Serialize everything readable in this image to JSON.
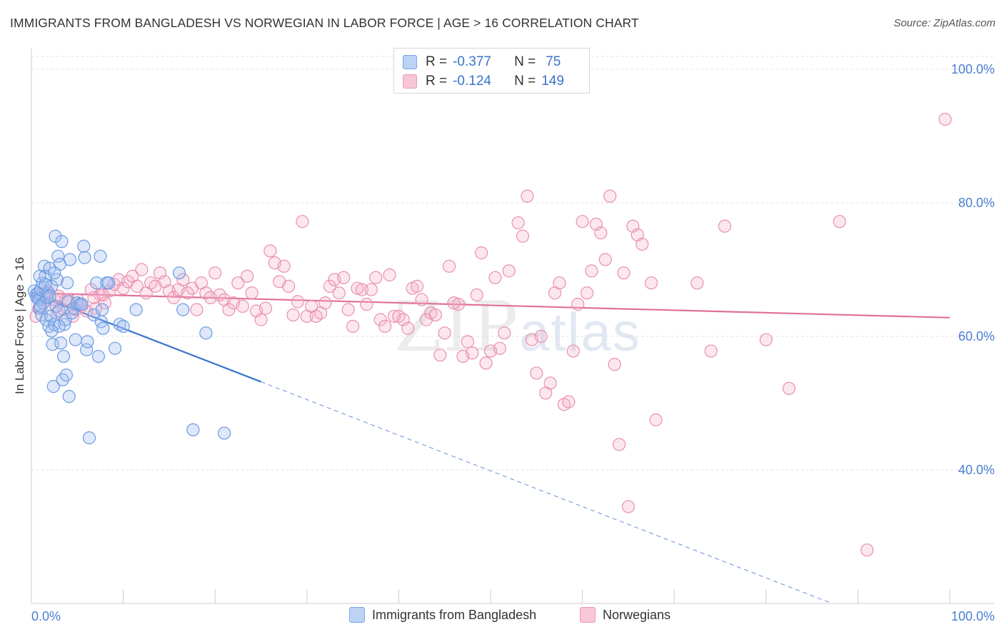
{
  "title": "IMMIGRANTS FROM BANGLADESH VS NORWEGIAN IN LABOR FORCE | AGE > 16 CORRELATION CHART",
  "source": "Source: ZipAtlas.com",
  "watermark": {
    "zip": "ZIP",
    "atlas": "atlas"
  },
  "legend": {
    "r_label": "R =",
    "n_label": "N =",
    "rows": [
      {
        "r": "-0.377",
        "n": "75"
      },
      {
        "r": "-0.124",
        "n": "149"
      }
    ]
  },
  "bottom_legend": [
    {
      "label": "Immigrants from Bangladesh"
    },
    {
      "label": "Norwegians"
    }
  ],
  "colors": {
    "blue": "#3a73cc",
    "pink": "#e0709a"
  },
  "chart_data": {
    "type": "scatter",
    "title": "IMMIGRANTS FROM BANGLADESH VS NORWEGIAN IN LABOR FORCE | AGE > 16 CORRELATION CHART",
    "xlabel": "",
    "ylabel": "In Labor Force | Age > 16",
    "xlim": [
      0,
      100
    ],
    "ylim": [
      20,
      100
    ],
    "x_tick_labels": [
      "0.0%",
      "100.0%"
    ],
    "y_ticks": [
      40,
      60,
      80,
      100
    ],
    "y_tick_labels": [
      "40.0%",
      "60.0%",
      "80.0%",
      "100.0%"
    ],
    "grid": true,
    "legend_position": "top-center",
    "series": [
      {
        "name": "Immigrants from Bangladesh",
        "color": "#6b9be0",
        "trend": {
          "x": [
            0,
            25
          ],
          "y": [
            66.5,
            53.2
          ],
          "dashed_to": [
            100,
            20
          ]
        },
        "points": [
          [
            0.3,
            66.8
          ],
          [
            0.5,
            66.2
          ],
          [
            0.6,
            65.8
          ],
          [
            0.7,
            66.5
          ],
          [
            0.8,
            65.5
          ],
          [
            0.9,
            64.2
          ],
          [
            1.0,
            67.0
          ],
          [
            1.1,
            63.2
          ],
          [
            1.2,
            68.0
          ],
          [
            1.3,
            65.0
          ],
          [
            1.4,
            70.5
          ],
          [
            1.5,
            69.0
          ],
          [
            1.6,
            62.5
          ],
          [
            1.7,
            65.8
          ],
          [
            1.8,
            66.5
          ],
          [
            1.9,
            61.5
          ],
          [
            2.0,
            70.2
          ],
          [
            2.1,
            63.0
          ],
          [
            2.2,
            67.5
          ],
          [
            2.3,
            58.8
          ],
          [
            2.4,
            52.5
          ],
          [
            2.5,
            61.8
          ],
          [
            2.6,
            75.0
          ],
          [
            2.7,
            64.5
          ],
          [
            2.8,
            68.5
          ],
          [
            2.9,
            72.0
          ],
          [
            3.0,
            63.8
          ],
          [
            3.1,
            70.8
          ],
          [
            3.2,
            59.0
          ],
          [
            3.3,
            74.2
          ],
          [
            3.4,
            53.5
          ],
          [
            3.5,
            57.0
          ],
          [
            3.6,
            61.8
          ],
          [
            3.7,
            62.5
          ],
          [
            3.8,
            54.2
          ],
          [
            3.9,
            68.0
          ],
          [
            4.0,
            65.2
          ],
          [
            4.1,
            51.0
          ],
          [
            4.2,
            71.5
          ],
          [
            4.4,
            63.5
          ],
          [
            4.6,
            64.2
          ],
          [
            4.8,
            59.5
          ],
          [
            5.0,
            65.0
          ],
          [
            5.3,
            64.8
          ],
          [
            5.5,
            64.8
          ],
          [
            5.7,
            73.5
          ],
          [
            5.8,
            71.8
          ],
          [
            6.0,
            58.0
          ],
          [
            6.1,
            59.2
          ],
          [
            6.3,
            44.8
          ],
          [
            6.8,
            63.2
          ],
          [
            7.1,
            68.0
          ],
          [
            7.3,
            57.0
          ],
          [
            7.5,
            72.0
          ],
          [
            7.6,
            62.2
          ],
          [
            7.7,
            64.0
          ],
          [
            7.8,
            61.2
          ],
          [
            8.2,
            68.0
          ],
          [
            8.4,
            68.0
          ],
          [
            9.1,
            58.2
          ],
          [
            9.6,
            61.8
          ],
          [
            10.0,
            61.5
          ],
          [
            11.4,
            64.0
          ],
          [
            16.1,
            69.5
          ],
          [
            16.5,
            64.0
          ],
          [
            19.0,
            60.5
          ],
          [
            17.6,
            46.0
          ],
          [
            21.0,
            45.5
          ],
          [
            1.0,
            64.5
          ],
          [
            2.0,
            66.0
          ],
          [
            3.0,
            61.5
          ],
          [
            2.5,
            69.5
          ],
          [
            1.5,
            67.8
          ],
          [
            0.9,
            69.0
          ],
          [
            2.2,
            60.8
          ]
        ]
      },
      {
        "name": "Norwegians",
        "color": "#e890b0",
        "trend": {
          "x": [
            0,
            100
          ],
          "y": [
            66.5,
            62.8
          ]
        },
        "points": [
          [
            0.5,
            63.0
          ],
          [
            1.0,
            65.5
          ],
          [
            1.5,
            66.5
          ],
          [
            2.0,
            64.8
          ],
          [
            2.5,
            65.5
          ],
          [
            3.0,
            66.0
          ],
          [
            3.5,
            64.0
          ],
          [
            4.0,
            65.5
          ],
          [
            4.5,
            63.0
          ],
          [
            5.0,
            65.5
          ],
          [
            5.5,
            64.5
          ],
          [
            6.0,
            63.8
          ],
          [
            6.5,
            67.0
          ],
          [
            7.0,
            64.2
          ],
          [
            7.5,
            66.2
          ],
          [
            8.0,
            65.0
          ],
          [
            8.5,
            66.8
          ],
          [
            9.0,
            67.8
          ],
          [
            9.5,
            68.5
          ],
          [
            10.0,
            67.2
          ],
          [
            10.5,
            68.2
          ],
          [
            11.0,
            69.0
          ],
          [
            11.5,
            67.5
          ],
          [
            12.0,
            70.0
          ],
          [
            12.5,
            66.5
          ],
          [
            13.0,
            68.0
          ],
          [
            13.5,
            67.5
          ],
          [
            14.0,
            69.5
          ],
          [
            14.5,
            68.2
          ],
          [
            15.0,
            66.8
          ],
          [
            15.5,
            65.8
          ],
          [
            16.0,
            67.0
          ],
          [
            16.5,
            68.5
          ],
          [
            17.0,
            66.5
          ],
          [
            17.5,
            67.2
          ],
          [
            18.0,
            64.0
          ],
          [
            18.5,
            68.0
          ],
          [
            19.0,
            66.5
          ],
          [
            19.5,
            65.8
          ],
          [
            20.0,
            69.5
          ],
          [
            20.5,
            66.2
          ],
          [
            21.0,
            65.5
          ],
          [
            21.5,
            64.0
          ],
          [
            22.0,
            65.0
          ],
          [
            22.5,
            68.0
          ],
          [
            23.0,
            64.5
          ],
          [
            23.5,
            69.0
          ],
          [
            24.0,
            66.5
          ],
          [
            24.5,
            63.8
          ],
          [
            25.0,
            62.5
          ],
          [
            25.5,
            64.2
          ],
          [
            26.0,
            72.8
          ],
          [
            26.5,
            71.0
          ],
          [
            27.0,
            68.2
          ],
          [
            27.5,
            70.5
          ],
          [
            28.0,
            67.5
          ],
          [
            28.5,
            63.2
          ],
          [
            29.0,
            65.2
          ],
          [
            29.5,
            77.2
          ],
          [
            30.0,
            63.0
          ],
          [
            30.5,
            64.5
          ],
          [
            31.0,
            63.0
          ],
          [
            31.5,
            63.5
          ],
          [
            32.0,
            65.0
          ],
          [
            32.5,
            67.5
          ],
          [
            33.0,
            68.5
          ],
          [
            33.5,
            66.5
          ],
          [
            34.0,
            68.8
          ],
          [
            34.5,
            64.0
          ],
          [
            35.0,
            61.5
          ],
          [
            35.5,
            67.2
          ],
          [
            36.0,
            67.0
          ],
          [
            36.5,
            64.8
          ],
          [
            37.0,
            67.0
          ],
          [
            37.5,
            68.8
          ],
          [
            38.0,
            62.5
          ],
          [
            38.5,
            61.5
          ],
          [
            39.0,
            69.2
          ],
          [
            39.5,
            63.0
          ],
          [
            40.0,
            63.0
          ],
          [
            40.5,
            62.5
          ],
          [
            41.0,
            61.2
          ],
          [
            41.5,
            67.2
          ],
          [
            42.0,
            67.5
          ],
          [
            42.5,
            65.5
          ],
          [
            43.0,
            62.5
          ],
          [
            43.5,
            63.5
          ],
          [
            44.0,
            63.2
          ],
          [
            44.5,
            57.2
          ],
          [
            45.0,
            60.5
          ],
          [
            45.5,
            70.5
          ],
          [
            46.0,
            65.0
          ],
          [
            46.5,
            64.8
          ],
          [
            47.0,
            57.0
          ],
          [
            47.5,
            59.2
          ],
          [
            48.0,
            57.5
          ],
          [
            48.5,
            66.2
          ],
          [
            49.0,
            72.5
          ],
          [
            49.5,
            56.0
          ],
          [
            50.0,
            57.8
          ],
          [
            50.5,
            68.8
          ],
          [
            51.0,
            58.2
          ],
          [
            51.5,
            60.5
          ],
          [
            52.0,
            69.8
          ],
          [
            53.0,
            77.0
          ],
          [
            53.5,
            75.0
          ],
          [
            54.0,
            81.0
          ],
          [
            54.5,
            59.5
          ],
          [
            55.0,
            54.5
          ],
          [
            55.5,
            60.0
          ],
          [
            56.0,
            51.5
          ],
          [
            56.5,
            53.0
          ],
          [
            57.0,
            66.5
          ],
          [
            57.5,
            68.0
          ],
          [
            58.0,
            49.8
          ],
          [
            58.5,
            50.2
          ],
          [
            59.0,
            57.8
          ],
          [
            59.5,
            64.8
          ],
          [
            60.0,
            77.2
          ],
          [
            60.5,
            66.5
          ],
          [
            61.0,
            69.8
          ],
          [
            61.5,
            76.8
          ],
          [
            62.0,
            75.5
          ],
          [
            62.5,
            71.5
          ],
          [
            63.0,
            81.0
          ],
          [
            63.5,
            55.8
          ],
          [
            64.0,
            43.8
          ],
          [
            64.5,
            69.5
          ],
          [
            65.0,
            34.5
          ],
          [
            65.5,
            76.5
          ],
          [
            66.0,
            75.2
          ],
          [
            66.5,
            73.8
          ],
          [
            67.5,
            68.0
          ],
          [
            68.0,
            47.5
          ],
          [
            72.5,
            68.0
          ],
          [
            74.0,
            57.8
          ],
          [
            75.5,
            76.5
          ],
          [
            80.0,
            59.5
          ],
          [
            82.5,
            52.2
          ],
          [
            88.0,
            77.2
          ],
          [
            91.0,
            28.0
          ],
          [
            99.5,
            92.5
          ],
          [
            0.8,
            64.2
          ],
          [
            1.8,
            66.8
          ],
          [
            2.8,
            63.5
          ],
          [
            3.8,
            65.5
          ],
          [
            4.8,
            64.0
          ],
          [
            6.8,
            65.8
          ],
          [
            7.8,
            66.2
          ]
        ]
      }
    ]
  }
}
